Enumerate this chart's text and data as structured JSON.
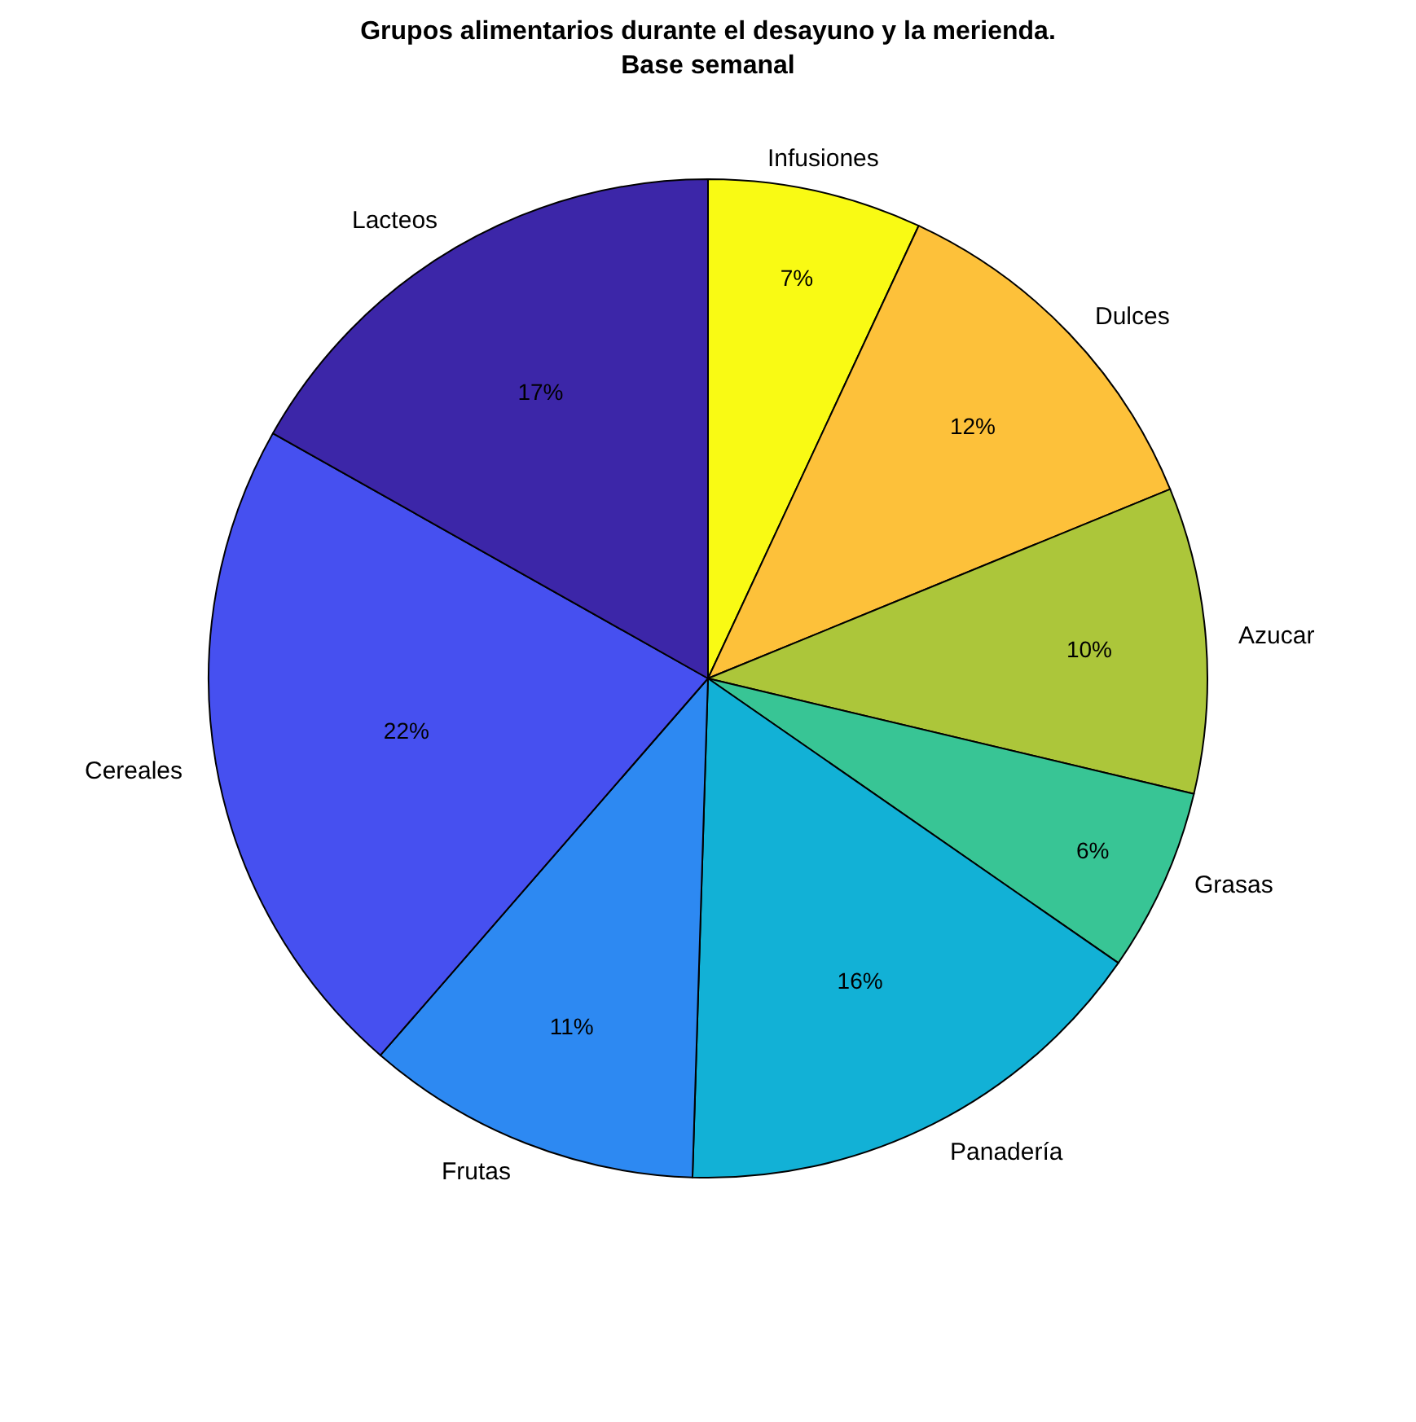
{
  "chart_data": {
    "type": "pie",
    "title": "Grupos alimentarios durante el desayuno y la merienda.\nBase semanal",
    "categories": [
      "Infusiones",
      "Dulces",
      "Azucar",
      "Grasas",
      "Panadería",
      "Frutas",
      "Cereales",
      "Lacteos"
    ],
    "values": [
      7,
      12,
      10,
      6,
      16,
      11,
      22,
      17
    ],
    "value_labels": [
      "7%",
      "12%",
      "10%",
      "6%",
      "16%",
      "11%",
      "22%",
      "17%"
    ],
    "colors": [
      "#f9fa14",
      "#fdc13a",
      "#acc63a",
      "#38c595",
      "#12b1d6",
      "#2d89f2",
      "#4650f0",
      "#3c26a8"
    ]
  }
}
